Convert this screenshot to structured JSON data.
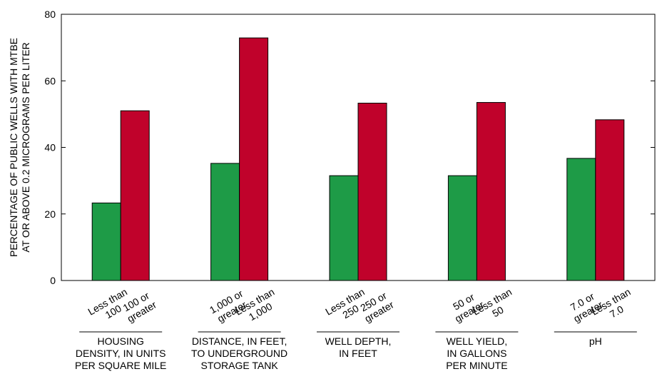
{
  "chart_data": {
    "type": "bar",
    "ylabel": [
      "PERCENTAGE OF PUBLIC WELLS WITH MTBE",
      "AT OR ABOVE 0.2 MICROGRAMS PER LITER"
    ],
    "ylim": [
      0,
      80
    ],
    "yticks": [
      0,
      20,
      40,
      60,
      80
    ],
    "grid": false,
    "groups": [
      {
        "label": [
          "HOUSING",
          "DENSITY, IN UNITS",
          "PER SQUARE MILE"
        ],
        "bars": [
          {
            "label": [
              "Less than",
              "100"
            ],
            "value": 23.3,
            "color": "#1e9b47"
          },
          {
            "label": [
              "100 or",
              "greater"
            ],
            "value": 51.0,
            "color": "#c0022b"
          }
        ]
      },
      {
        "label": [
          "DISTANCE, IN FEET,",
          "TO UNDERGROUND",
          "STORAGE TANK"
        ],
        "bars": [
          {
            "label": [
              "1,000 or",
              "greater"
            ],
            "value": 35.2,
            "color": "#1e9b47"
          },
          {
            "label": [
              "Less than",
              "1,000"
            ],
            "value": 72.9,
            "color": "#c0022b"
          }
        ]
      },
      {
        "label": [
          "WELL DEPTH,",
          "IN FEET"
        ],
        "bars": [
          {
            "label": [
              "Less than",
              "250"
            ],
            "value": 31.5,
            "color": "#1e9b47"
          },
          {
            "label": [
              "250 or",
              "greater"
            ],
            "value": 53.3,
            "color": "#c0022b"
          }
        ]
      },
      {
        "label": [
          "WELL YIELD,",
          "IN GALLONS",
          "PER MINUTE"
        ],
        "bars": [
          {
            "label": [
              "50 or",
              "greater"
            ],
            "value": 31.5,
            "color": "#1e9b47"
          },
          {
            "label": [
              "Less than",
              "50"
            ],
            "value": 53.5,
            "color": "#c0022b"
          }
        ]
      },
      {
        "label": [
          "pH"
        ],
        "bars": [
          {
            "label": [
              "7.0 or",
              "greater"
            ],
            "value": 36.7,
            "color": "#1e9b47"
          },
          {
            "label": [
              "Less than",
              "7.0"
            ],
            "value": 48.3,
            "color": "#c0022b"
          }
        ]
      }
    ]
  }
}
